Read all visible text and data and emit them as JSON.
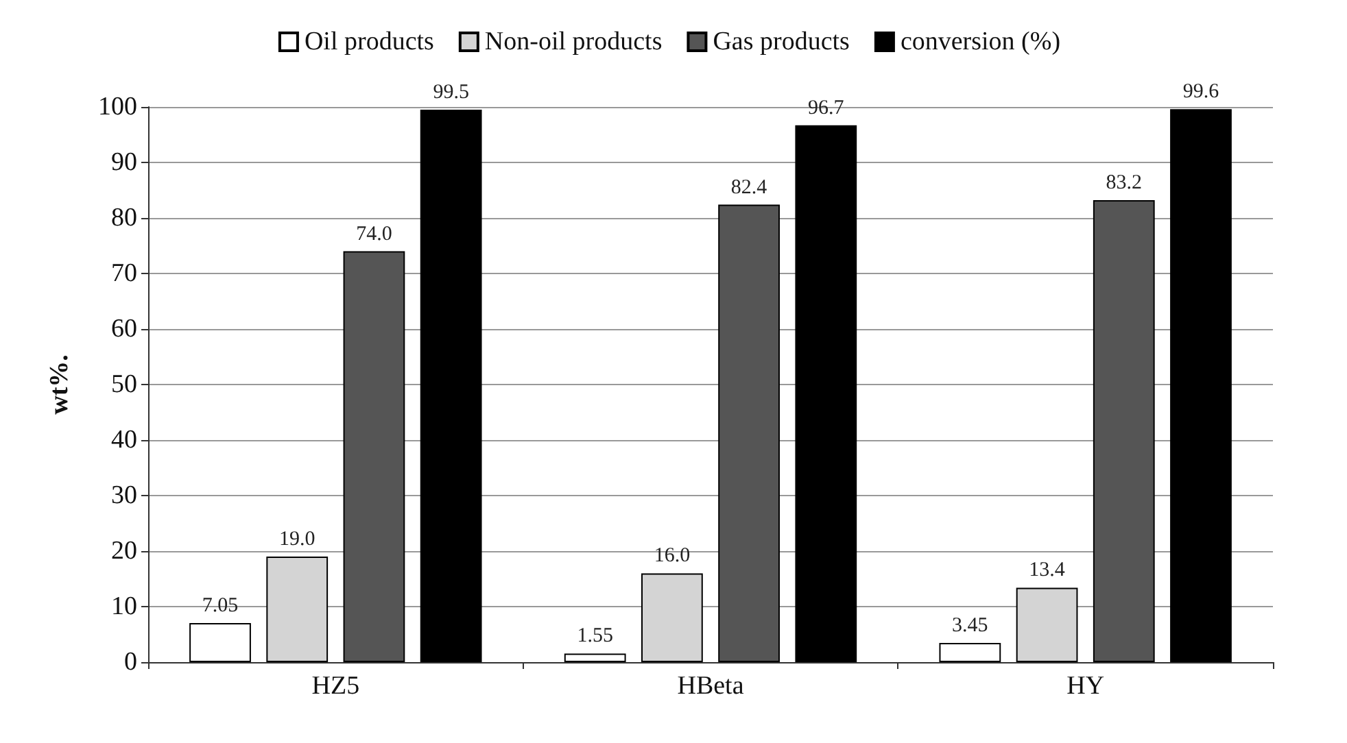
{
  "chart_data": {
    "type": "bar",
    "ylabel": "wt%.",
    "categories": [
      "HZ5",
      "HBeta",
      "HY"
    ],
    "series": [
      {
        "name": "Oil products",
        "color": "#ffffff",
        "values": [
          7.05,
          1.55,
          3.45
        ],
        "value_labels": [
          "7.05",
          "1.55",
          "3.45"
        ]
      },
      {
        "name": "Non-oil products",
        "color": "#d4d4d4",
        "values": [
          19.0,
          16.0,
          13.4
        ],
        "value_labels": [
          "19.0",
          "16.0",
          "13.4"
        ]
      },
      {
        "name": "Gas products",
        "color": "#555555",
        "values": [
          74.0,
          82.4,
          83.2
        ],
        "value_labels": [
          "74.0",
          "82.4",
          "83.2"
        ]
      },
      {
        "name": "conversion (%)",
        "color": "#000000",
        "values": [
          99.5,
          96.7,
          99.6
        ],
        "value_labels": [
          "99.5",
          "96.7",
          "99.6"
        ]
      }
    ],
    "ylim": [
      0,
      100
    ],
    "yticks": [
      0,
      10,
      20,
      30,
      40,
      50,
      60,
      70,
      80,
      90,
      100
    ],
    "grid": "y",
    "legend": "top"
  }
}
